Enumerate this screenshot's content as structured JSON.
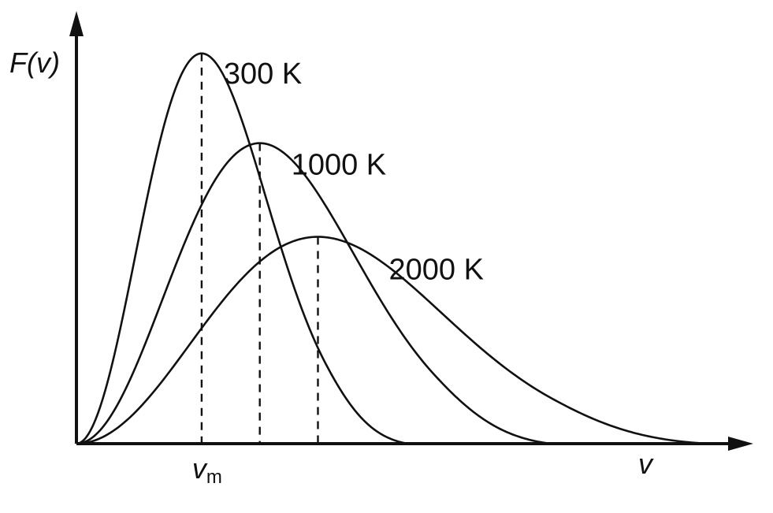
{
  "chart_data": {
    "type": "line",
    "title": "",
    "ylabel": "F(v)",
    "xlabel": "v",
    "grid": false,
    "x_tick_labels": [
      {
        "main": "v",
        "sub": "m",
        "at_series": "300 K"
      }
    ],
    "series": [
      {
        "name": "300 K",
        "temperature": 300,
        "peak_x": 0.28,
        "peak_y": 1.0,
        "end_x": 0.74
      },
      {
        "name": "1000 K",
        "temperature": 1000,
        "peak_x": 0.41,
        "peak_y": 0.77,
        "end_x": 1.06
      },
      {
        "name": "2000 K",
        "temperature": 2000,
        "peak_x": 0.54,
        "peak_y": 0.53,
        "end_x": 1.41
      }
    ],
    "xlim": [
      0,
      1.48
    ],
    "ylim": [
      0,
      1.05
    ],
    "peak_markers": "dashed vertical lines at each curve's peak"
  }
}
